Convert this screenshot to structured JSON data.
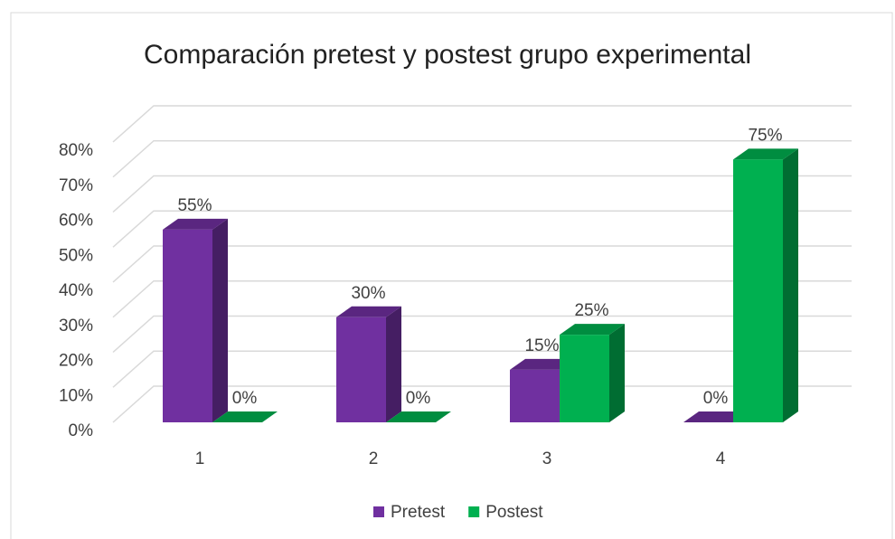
{
  "chart_data": {
    "type": "bar3d",
    "title": "Comparación pretest y postest grupo experimental",
    "categories": [
      "1",
      "2",
      "3",
      "4"
    ],
    "series": [
      {
        "name": "Pretest",
        "color": "#7030a0",
        "values": [
          55,
          30,
          15,
          0
        ],
        "value_labels": [
          "55%",
          "30%",
          "15%",
          "0%"
        ]
      },
      {
        "name": "Postest",
        "color": "#00b050",
        "values": [
          0,
          0,
          25,
          75
        ],
        "value_labels": [
          "0%",
          "0%",
          "25%",
          "75%"
        ]
      }
    ],
    "ylim": [
      0,
      80
    ],
    "yticks": [
      {
        "value": 0,
        "label": "0%"
      },
      {
        "value": 10,
        "label": "10%"
      },
      {
        "value": 20,
        "label": "20%"
      },
      {
        "value": 30,
        "label": "30%"
      },
      {
        "value": 40,
        "label": "40%"
      },
      {
        "value": 50,
        "label": "50%"
      },
      {
        "value": 60,
        "label": "60%"
      },
      {
        "value": 70,
        "label": "70%"
      },
      {
        "value": 80,
        "label": "80%"
      }
    ],
    "grid": true,
    "legend": "bottom"
  }
}
